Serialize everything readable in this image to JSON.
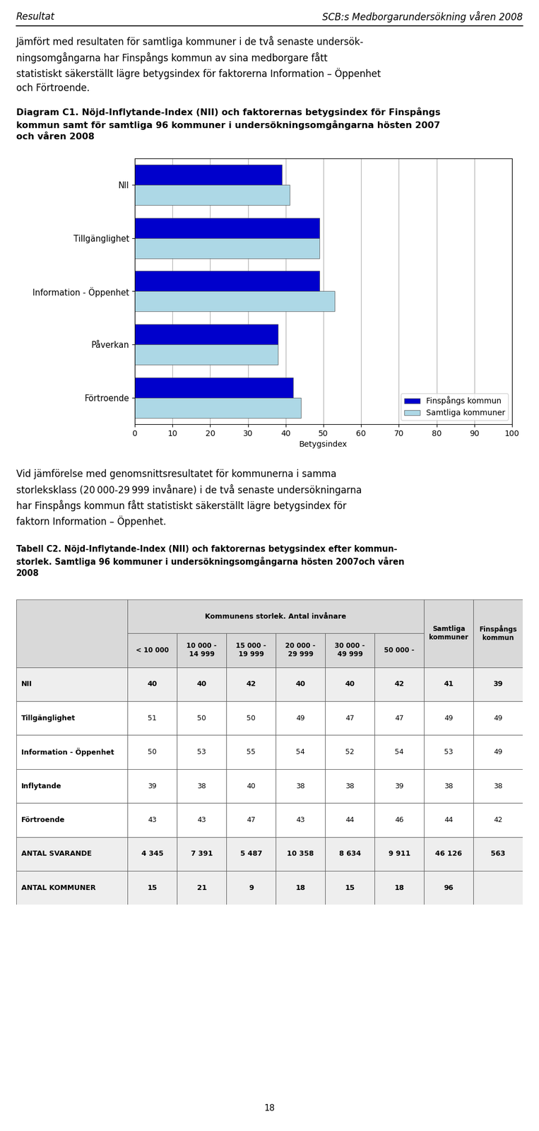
{
  "chart_data": [
    {
      "type": "bar",
      "orientation": "horizontal",
      "title": "Diagram C1. Nöjd-Inflytande-Index (NII) och faktorernas betygsindex för Finspångs\nkommun samt för samtliga 96 kommuner i undersökningsomgångarna hösten 2007\noch våren 2008",
      "categories": [
        "NII",
        "Tillgänglighet",
        "Information - Öppenhet",
        "Påverkan",
        "Förtroende"
      ],
      "series": [
        {
          "name": "Finspångs kommun",
          "color": "#0000CC",
          "values": [
            39,
            49,
            49,
            38,
            42
          ]
        },
        {
          "name": "Samtliga kommuner",
          "color": "#ADD8E6",
          "values": [
            41,
            49,
            53,
            38,
            44
          ]
        }
      ],
      "xlabel": "Betygsindex",
      "xlim": [
        0,
        100
      ],
      "xticks": [
        0,
        10,
        20,
        30,
        40,
        50,
        60,
        70,
        80,
        90,
        100
      ],
      "grid": true,
      "legend": "lower right",
      "annotations": [
        "Resultat",
        "SCB:s Medborgarundersökning våren 2008",
        "Jämfört med resultaten för samtliga kommuner i de två senaste undersök-\nningsomgångarna har Finspångs kommun av sina medborgare fått\nstatistiskt säkerställt lägre betygsindex för faktorerna Information – Öppenhet\noch Förtroende.",
        "Vid jämförelse med genomsnittsresultatet för kommunerna i samma\nstorleksklass (20 000-29 999 invånare) i de två senaste undersökningarna\nhar Finspångs kommun fått statistiskt säkerställt lägre betygsindex för\nfaktorn Information – Öppenhet.",
        "18"
      ]
    },
    {
      "type": "table",
      "title": "Tabell C2. Nöjd-Inflytande-Index (NII) och faktorernas betygsindex efter kommun-\nstorlek. Samtliga 96 kommuner i undersökningsomgångarna hösten 2007och våren\n2008",
      "columns": [
        {
          "group": "Kommunens storlek. Antal invånare",
          "label": "< 10 000"
        },
        {
          "group": "Kommunens storlek. Antal invånare",
          "label": "10 000 -\n14 999"
        },
        {
          "group": "Kommunens storlek. Antal invånare",
          "label": "15 000 -\n19 999"
        },
        {
          "group": "Kommunens storlek. Antal invånare",
          "label": "20 000 -\n29 999"
        },
        {
          "group": "Kommunens storlek. Antal invånare",
          "label": "30 000 -\n49 999"
        },
        {
          "group": "Kommunens storlek. Antal invånare",
          "label": "50 000 -"
        },
        {
          "label": "Samtliga\nkommuner"
        },
        {
          "label": "Finspångs\nkommun"
        }
      ],
      "rows": [
        {
          "label": "NII",
          "cells": [
            "40",
            "40",
            "42",
            "40",
            "40",
            "42",
            "41",
            "39"
          ]
        },
        {
          "label": "Tillgänglighet",
          "cells": [
            "51",
            "50",
            "50",
            "49",
            "47",
            "47",
            "49",
            "49"
          ]
        },
        {
          "label": "Information - Öppenhet",
          "cells": [
            "50",
            "53",
            "55",
            "54",
            "52",
            "54",
            "53",
            "49"
          ]
        },
        {
          "label": "Inflytande",
          "cells": [
            "39",
            "38",
            "40",
            "38",
            "38",
            "39",
            "38",
            "38"
          ]
        },
        {
          "label": "Förtroende",
          "cells": [
            "43",
            "43",
            "47",
            "43",
            "44",
            "46",
            "44",
            "42"
          ]
        },
        {
          "label": "ANTAL SVARANDE",
          "cells": [
            "4 345",
            "7 391",
            "5 487",
            "10 358",
            "8 634",
            "9 911",
            "46 126",
            "563"
          ]
        },
        {
          "label": "ANTAL KOMMUNER",
          "cells": [
            "15",
            "21",
            "9",
            "18",
            "15",
            "18",
            "96",
            null
          ]
        }
      ]
    }
  ]
}
